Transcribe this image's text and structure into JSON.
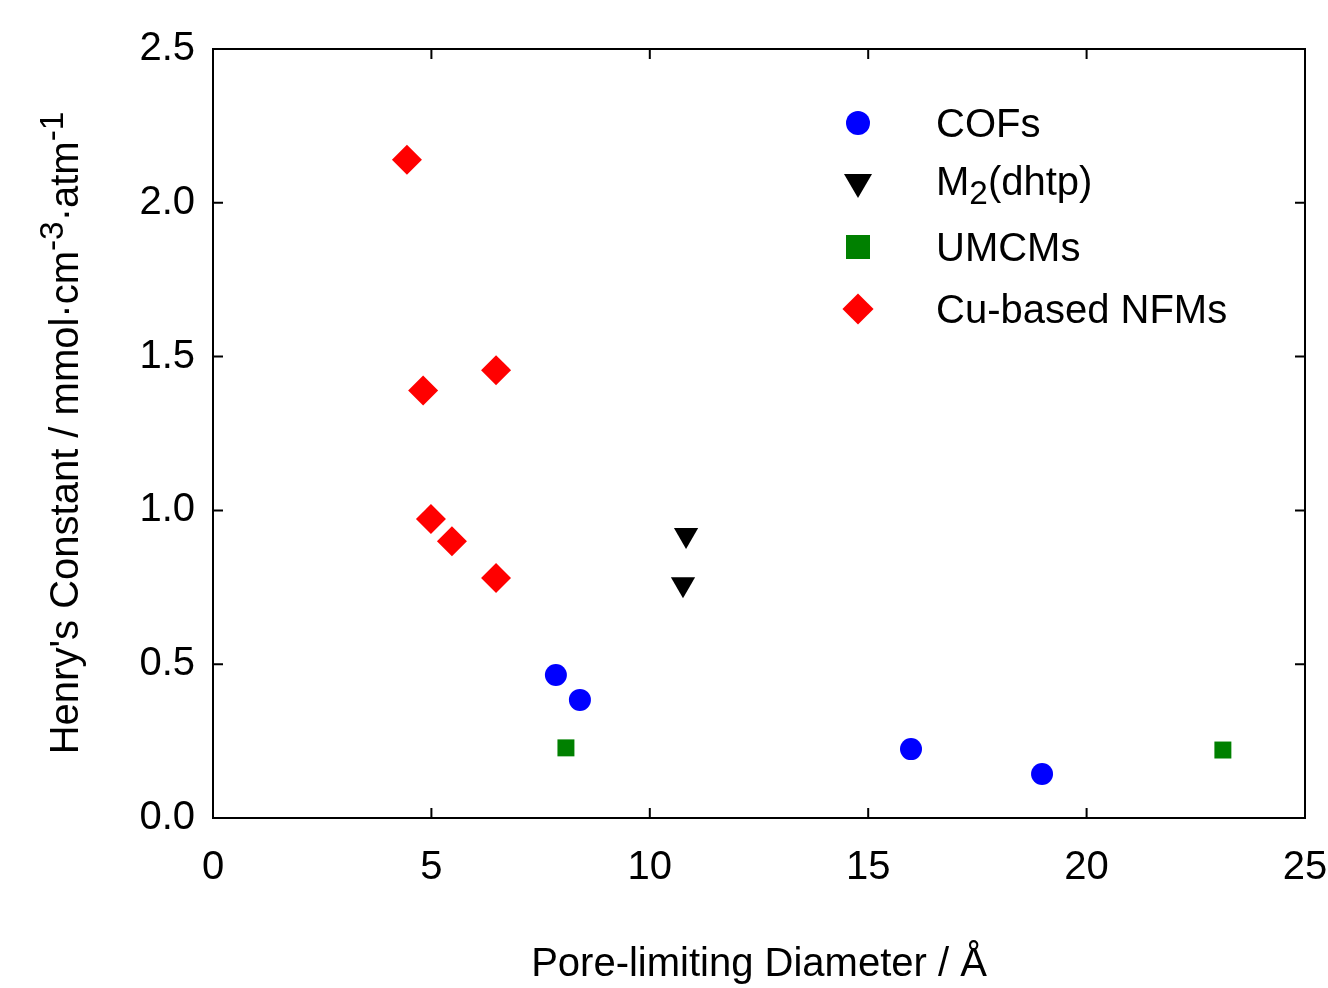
{
  "chart_data": {
    "type": "scatter",
    "xlabel": "Pore-limiting Diameter / Å",
    "ylabel": "Henry's Constant / mmol·cm$^{-3}$·atm$^{-1}$",
    "xlim": [
      0,
      25
    ],
    "xticks": [
      0,
      5,
      10,
      15,
      20,
      25
    ],
    "ylim": [
      0,
      2.5
    ],
    "yticks": [
      {
        "value": 0,
        "label": "0.0"
      },
      {
        "value": 0.5,
        "label": "0.5"
      },
      {
        "value": 1,
        "label": "1.0"
      },
      {
        "value": 1.5,
        "label": "1.5"
      },
      {
        "value": 2,
        "label": "2.0"
      },
      {
        "value": 2.5,
        "label": "2.5"
      }
    ],
    "grid": false,
    "legend": "top right",
    "series": [
      {
        "name": "COFs",
        "color": "#0000ff",
        "marker": "circle",
        "x": [
          7.85,
          8.4,
          15.98,
          18.98
        ],
        "values": [
          0.465,
          0.384,
          0.224,
          0.143
        ]
      },
      {
        "name": "M$_{2}$(dhtp)",
        "color": "#000000",
        "marker": "triangle",
        "x": [
          10.83,
          10.76
        ],
        "values": [
          0.92,
          0.76
        ]
      },
      {
        "name": "UMCMs",
        "color": "#008000",
        "marker": "square",
        "x": [
          8.08,
          23.12
        ],
        "values": [
          0.228,
          0.221
        ]
      },
      {
        "name": "Cu-based NFMs",
        "color": "#ff0000",
        "marker": "diamond",
        "x": [
          4.44,
          4.81,
          6.48,
          4.99,
          5.47,
          6.48
        ],
        "values": [
          2.14,
          1.39,
          1.456,
          0.972,
          0.9,
          0.78
        ]
      }
    ]
  }
}
